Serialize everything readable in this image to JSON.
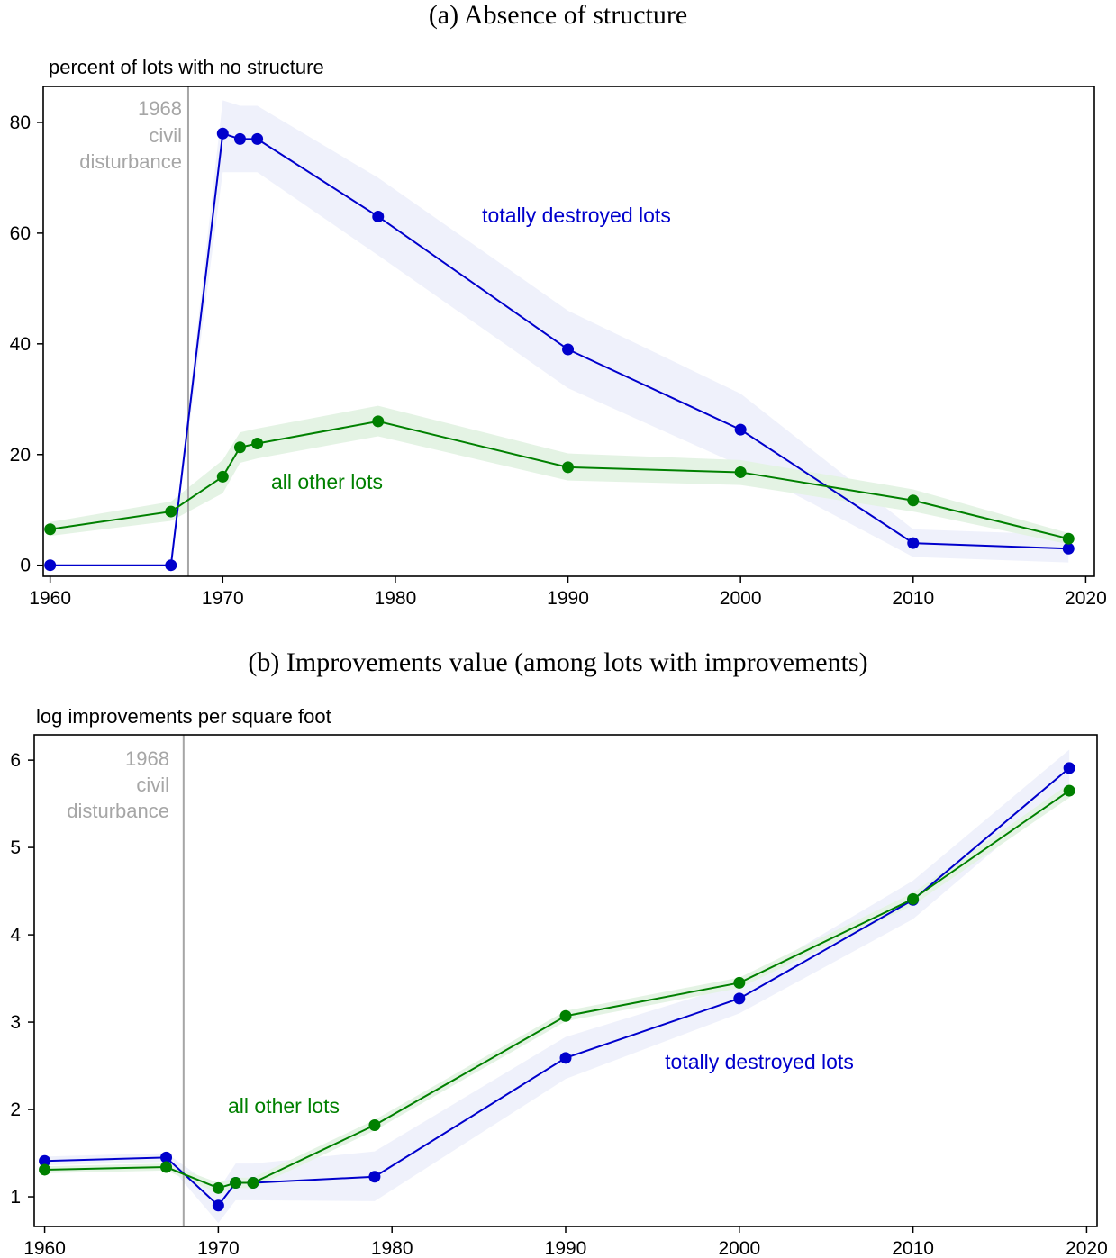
{
  "chart_data": [
    {
      "type": "line",
      "title": "(a) Absence of structure",
      "ylabel": "percent of lots with no structure",
      "xlabel": "",
      "xlim": [
        1959.6,
        2020.5
      ],
      "ylim": [
        -2,
        86.5
      ],
      "xticks": [
        1960,
        1970,
        1980,
        1990,
        2000,
        2010,
        2020
      ],
      "yticks": [
        0,
        20,
        40,
        60,
        80
      ],
      "grid": false,
      "event": {
        "x": 1968,
        "label_lines": [
          "1968",
          "civil",
          "disturbance"
        ]
      },
      "series": [
        {
          "name": "totally destroyed lots",
          "color": "#0000cc",
          "band_color": "#eef0fb",
          "x": [
            1960,
            1967,
            1970,
            1971,
            1972,
            1979,
            1990,
            2000,
            2010,
            2019
          ],
          "y": [
            0,
            0,
            78,
            77,
            77,
            63,
            39,
            24.5,
            4,
            3
          ],
          "lower": [
            0,
            0,
            71,
            71,
            71,
            56,
            32,
            18,
            1.5,
            0.5
          ],
          "upper": [
            0,
            0,
            84,
            83,
            83,
            70,
            46,
            31,
            6.5,
            5.5
          ]
        },
        {
          "name": "all other lots",
          "color": "#008000",
          "band_color": "#e3f2e3",
          "x": [
            1960,
            1967,
            1970,
            1971,
            1972,
            1979,
            1990,
            2000,
            2010,
            2019
          ],
          "y": [
            6.5,
            9.7,
            16,
            21.3,
            22,
            26,
            17.7,
            16.8,
            11.7,
            4.8
          ],
          "lower": [
            5.3,
            8.0,
            13.0,
            18.5,
            19.3,
            23.3,
            15.3,
            14.5,
            9.7,
            3.8
          ],
          "upper": [
            7.8,
            11.5,
            19.0,
            24.0,
            24.7,
            28.8,
            20.2,
            19.0,
            13.7,
            5.8
          ]
        }
      ]
    },
    {
      "type": "line",
      "title": "(b) Improvements value (among lots with improvements)",
      "ylabel": "log improvements per square foot",
      "xlabel": "",
      "xlim": [
        1959.4,
        2020.6
      ],
      "ylim": [
        0.66,
        6.29
      ],
      "xticks": [
        1960,
        1970,
        1980,
        1990,
        2000,
        2010,
        2020
      ],
      "yticks": [
        1,
        2,
        3,
        4,
        5,
        6
      ],
      "grid": false,
      "event": {
        "x": 1968,
        "label_lines": [
          "1968",
          "civil",
          "disturbance"
        ]
      },
      "series": [
        {
          "name": "totally destroyed lots",
          "color": "#0000cc",
          "band_color": "#eef0fb",
          "x": [
            1960,
            1967,
            1970,
            1971,
            1972,
            1979,
            1990,
            2000,
            2010,
            2019
          ],
          "y": [
            1.41,
            1.45,
            0.9,
            1.16,
            1.16,
            1.23,
            2.59,
            3.27,
            4.4,
            5.91
          ],
          "lower": [
            1.36,
            1.4,
            0.7,
            0.96,
            0.96,
            0.95,
            2.35,
            3.1,
            4.18,
            5.7
          ],
          "upper": [
            1.46,
            1.5,
            1.08,
            1.38,
            1.38,
            1.52,
            2.83,
            3.44,
            4.62,
            6.12
          ]
        },
        {
          "name": "all other lots",
          "color": "#008000",
          "band_color": "#e3f2e3",
          "x": [
            1960,
            1967,
            1970,
            1971,
            1972,
            1979,
            1990,
            2000,
            2010,
            2019
          ],
          "y": [
            1.31,
            1.34,
            1.1,
            1.16,
            1.16,
            1.82,
            3.07,
            3.45,
            4.41,
            5.65
          ],
          "lower": [
            1.27,
            1.3,
            1.04,
            1.1,
            1.1,
            1.76,
            3.01,
            3.39,
            4.34,
            5.57
          ],
          "upper": [
            1.35,
            1.38,
            1.16,
            1.22,
            1.22,
            1.88,
            3.13,
            3.51,
            4.48,
            5.73
          ]
        }
      ]
    }
  ]
}
